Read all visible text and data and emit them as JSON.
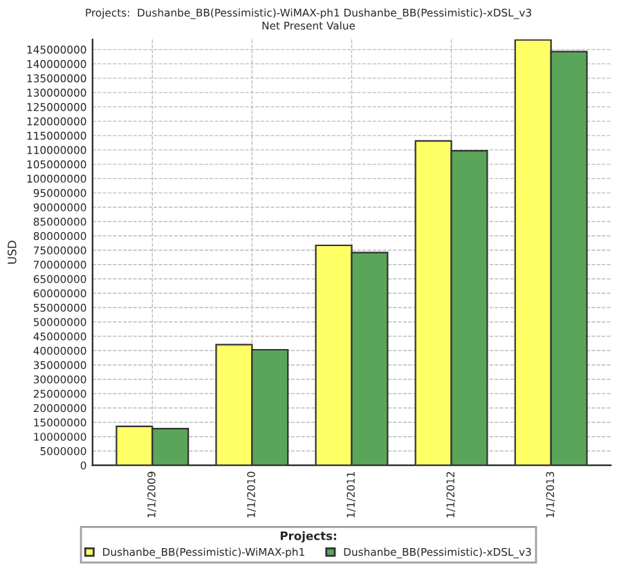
{
  "chart_data": {
    "type": "bar",
    "title": "Projects:  Dushanbe_BB(Pessimistic)-WiMAX-ph1 Dushanbe_BB(Pessimistic)-xDSL_v3",
    "subtitle": "Net Present Value",
    "ylabel": "USD",
    "legend_title": "Projects:",
    "categories": [
      "1/1/2009",
      "1/1/2010",
      "1/1/2011",
      "1/1/2012",
      "1/1/2013"
    ],
    "series": [
      {
        "name": "Dushanbe_BB(Pessimistic)-WiMAX-ph1",
        "color": "#ffff66",
        "values": [
          13600000,
          42100000,
          76700000,
          113100000,
          148400000
        ]
      },
      {
        "name": "Dushanbe_BB(Pessimistic)-xDSL_v3",
        "color": "#5aa55a",
        "values": [
          12800000,
          40300000,
          74200000,
          109700000,
          144300000
        ]
      }
    ],
    "ylim": [
      0,
      148500000
    ],
    "yticks": [
      0,
      5000000,
      10000000,
      15000000,
      20000000,
      25000000,
      30000000,
      35000000,
      40000000,
      45000000,
      50000000,
      55000000,
      60000000,
      65000000,
      70000000,
      75000000,
      80000000,
      85000000,
      90000000,
      95000000,
      100000000,
      105000000,
      110000000,
      115000000,
      120000000,
      125000000,
      130000000,
      135000000,
      140000000,
      145000000
    ],
    "grid": true,
    "legend": "bottom"
  }
}
